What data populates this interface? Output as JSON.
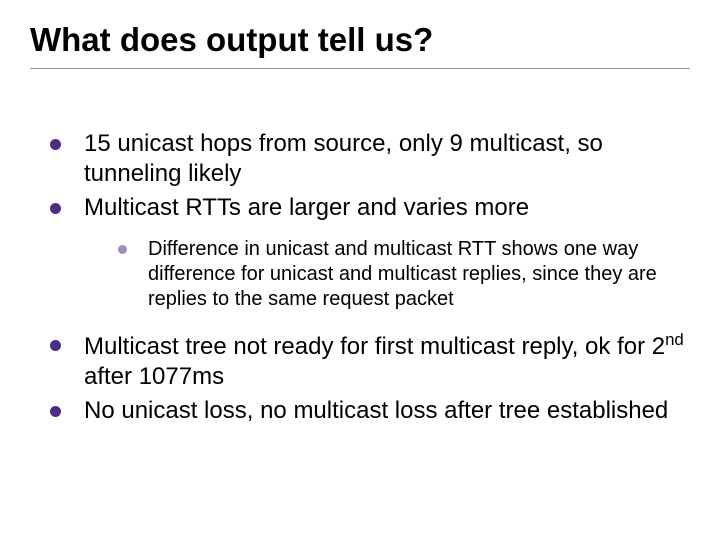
{
  "slide": {
    "title": "What does output tell us?",
    "title_fontsize": 33,
    "title_color": "#000000",
    "title_weight": "bold",
    "underline_color": "#999999",
    "background_color": "#ffffff",
    "body_font_family": "Arial",
    "bullets_level1": [
      "15 unicast hops from source, only 9 multicast, so tunneling likely",
      "Multicast RTTs are larger and varies more",
      "Multicast tree not ready for first multicast reply, ok for 2ⁿᵈ after 1077ms",
      "No unicast loss, no multicast loss after tree established"
    ],
    "bullet3_html": "Multicast tree not ready for first multicast reply, ok for 2<sup>nd</sup> after 1077ms",
    "bullets_level2_under_index": 1,
    "bullets_level2": [
      "Difference in unicast and multicast RTT shows one way difference for unicast and multicast replies, since they are replies to the same request packet"
    ],
    "level1_bullet_color": "#4b2e83",
    "level1_fontsize": 24,
    "level1_text_color": "#000000",
    "level2_bullet_color": "#a08cc0",
    "level2_fontsize": 20,
    "level2_text_color": "#000000"
  }
}
